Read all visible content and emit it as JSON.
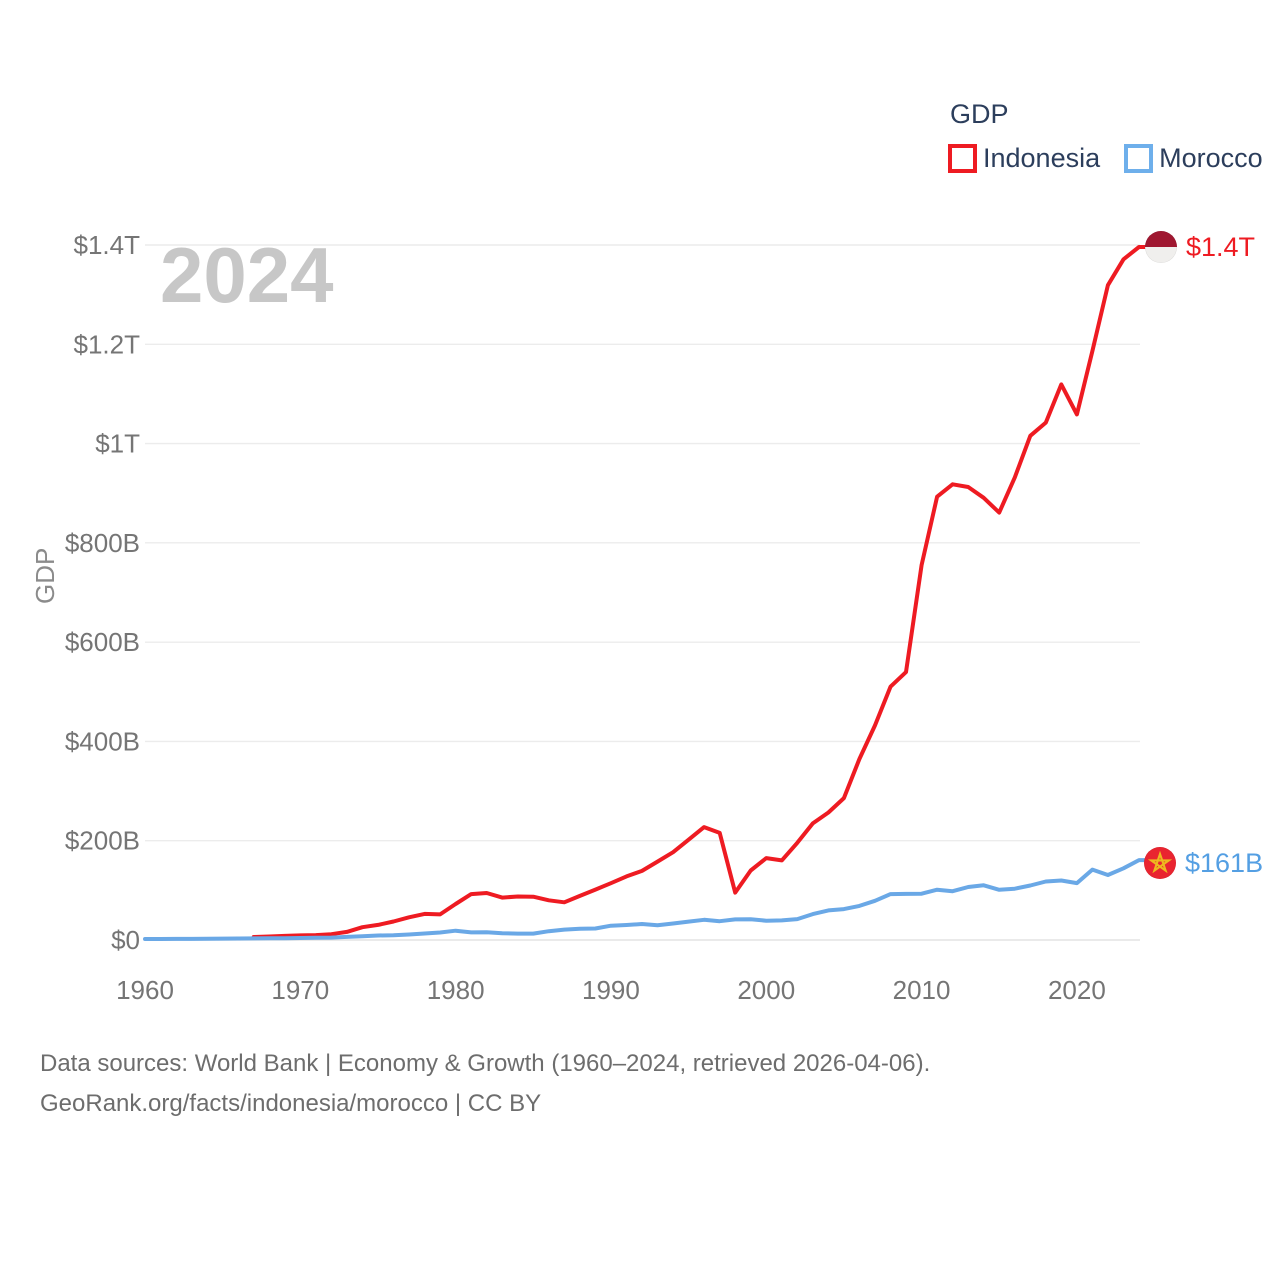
{
  "legend": {
    "title": "GDP",
    "items": [
      {
        "label": "Indonesia",
        "color": "#ee1b22"
      },
      {
        "label": "Morocco",
        "color": "#6eafeb"
      }
    ]
  },
  "end_labels": {
    "indonesia": {
      "text": "$1.4T",
      "color": "#ee1b22",
      "flag": "indonesia-flag"
    },
    "morocco": {
      "text": "$161B",
      "color": "#549fe3",
      "flag": "morocco-flag"
    }
  },
  "footer": {
    "line1": "Data sources: World Bank | Economy & Growth (1960–2024, retrieved 2026-04-06).",
    "line2": "GeoRank.org/facts/indonesia/morocco | CC BY"
  },
  "chart_data": {
    "type": "line",
    "title": "GDP",
    "xlabel": "",
    "ylabel": "GDP",
    "units": "USD billions (current US$)",
    "watermark": "2024",
    "x_range": [
      1960,
      2024
    ],
    "y_range_billions": [
      0,
      1400
    ],
    "grid": "horizontal",
    "legend_position": "top-right",
    "x_ticks": [
      1960,
      1970,
      1980,
      1990,
      2000,
      2010,
      2020
    ],
    "y_ticks": [
      {
        "value": 0,
        "label": "$0"
      },
      {
        "value": 200,
        "label": "$200B"
      },
      {
        "value": 400,
        "label": "$400B"
      },
      {
        "value": 600,
        "label": "$600B"
      },
      {
        "value": 800,
        "label": "$800B"
      },
      {
        "value": 1000,
        "label": "$1T"
      },
      {
        "value": 1200,
        "label": "$1.2T"
      },
      {
        "value": 1400,
        "label": "$1.4T"
      }
    ],
    "series": [
      {
        "name": "Indonesia",
        "color": "#ee1b22",
        "end_label": "$1.4T",
        "years": [
          1967,
          1968,
          1969,
          1970,
          1971,
          1972,
          1973,
          1974,
          1975,
          1976,
          1977,
          1978,
          1979,
          1980,
          1981,
          1982,
          1983,
          1984,
          1985,
          1986,
          1987,
          1988,
          1989,
          1990,
          1991,
          1992,
          1993,
          1994,
          1995,
          1996,
          1997,
          1998,
          1999,
          2000,
          2001,
          2002,
          2003,
          2004,
          2005,
          2006,
          2007,
          2008,
          2009,
          2010,
          2011,
          2012,
          2013,
          2014,
          2015,
          2016,
          2017,
          2018,
          2019,
          2020,
          2021,
          2022,
          2023,
          2024
        ],
        "values": [
          6.0,
          7.1,
          8.3,
          9.2,
          9.9,
          11.6,
          16.3,
          25.8,
          30.5,
          37.3,
          45.8,
          52.5,
          51.5,
          72.5,
          92.5,
          94.7,
          85.4,
          87.6,
          87.3,
          80.0,
          75.9,
          88.8,
          101.5,
          114.4,
          128.2,
          139.1,
          158.0,
          176.9,
          202.1,
          227.4,
          215.7,
          95.4,
          140.0,
          165.0,
          160.4,
          195.7,
          234.8,
          256.8,
          285.9,
          364.6,
          432.2,
          510.2,
          539.6,
          755.1,
          893.0,
          917.9,
          912.5,
          890.8,
          860.9,
          931.9,
          1015.6,
          1042.3,
          1119.1,
          1058.7,
          1186.5,
          1319.1,
          1371.2,
          1396.0
        ]
      },
      {
        "name": "Morocco",
        "color": "#6aa8e6",
        "end_label": "$161B",
        "years": [
          1960,
          1961,
          1962,
          1963,
          1964,
          1965,
          1966,
          1967,
          1968,
          1969,
          1970,
          1971,
          1972,
          1973,
          1974,
          1975,
          1976,
          1977,
          1978,
          1979,
          1980,
          1981,
          1982,
          1983,
          1984,
          1985,
          1986,
          1987,
          1988,
          1989,
          1990,
          1991,
          1992,
          1993,
          1994,
          1995,
          1996,
          1997,
          1998,
          1999,
          2000,
          2001,
          2002,
          2003,
          2004,
          2005,
          2006,
          2007,
          2008,
          2009,
          2010,
          2011,
          2012,
          2013,
          2014,
          2015,
          2016,
          2017,
          2018,
          2019,
          2020,
          2021,
          2022,
          2023,
          2024
        ],
        "values": [
          2.0,
          2.0,
          2.2,
          2.3,
          2.5,
          2.9,
          3.0,
          3.2,
          3.5,
          3.7,
          4.0,
          4.4,
          4.9,
          6.2,
          7.4,
          9.0,
          9.6,
          11.1,
          13.1,
          15.2,
          18.8,
          15.4,
          15.7,
          13.7,
          12.9,
          12.9,
          17.8,
          20.9,
          22.7,
          23.1,
          28.8,
          30.2,
          32.3,
          29.8,
          33.3,
          37.0,
          40.7,
          37.8,
          41.4,
          41.6,
          38.9,
          39.5,
          42.1,
          52.1,
          59.6,
          62.3,
          68.6,
          79.0,
          92.5,
          92.9,
          93.2,
          101.4,
          98.3,
          106.8,
          110.1,
          101.2,
          103.3,
          109.7,
          117.9,
          119.9,
          114.7,
          141.8,
          130.9,
          144.4,
          161.0
        ]
      }
    ]
  }
}
